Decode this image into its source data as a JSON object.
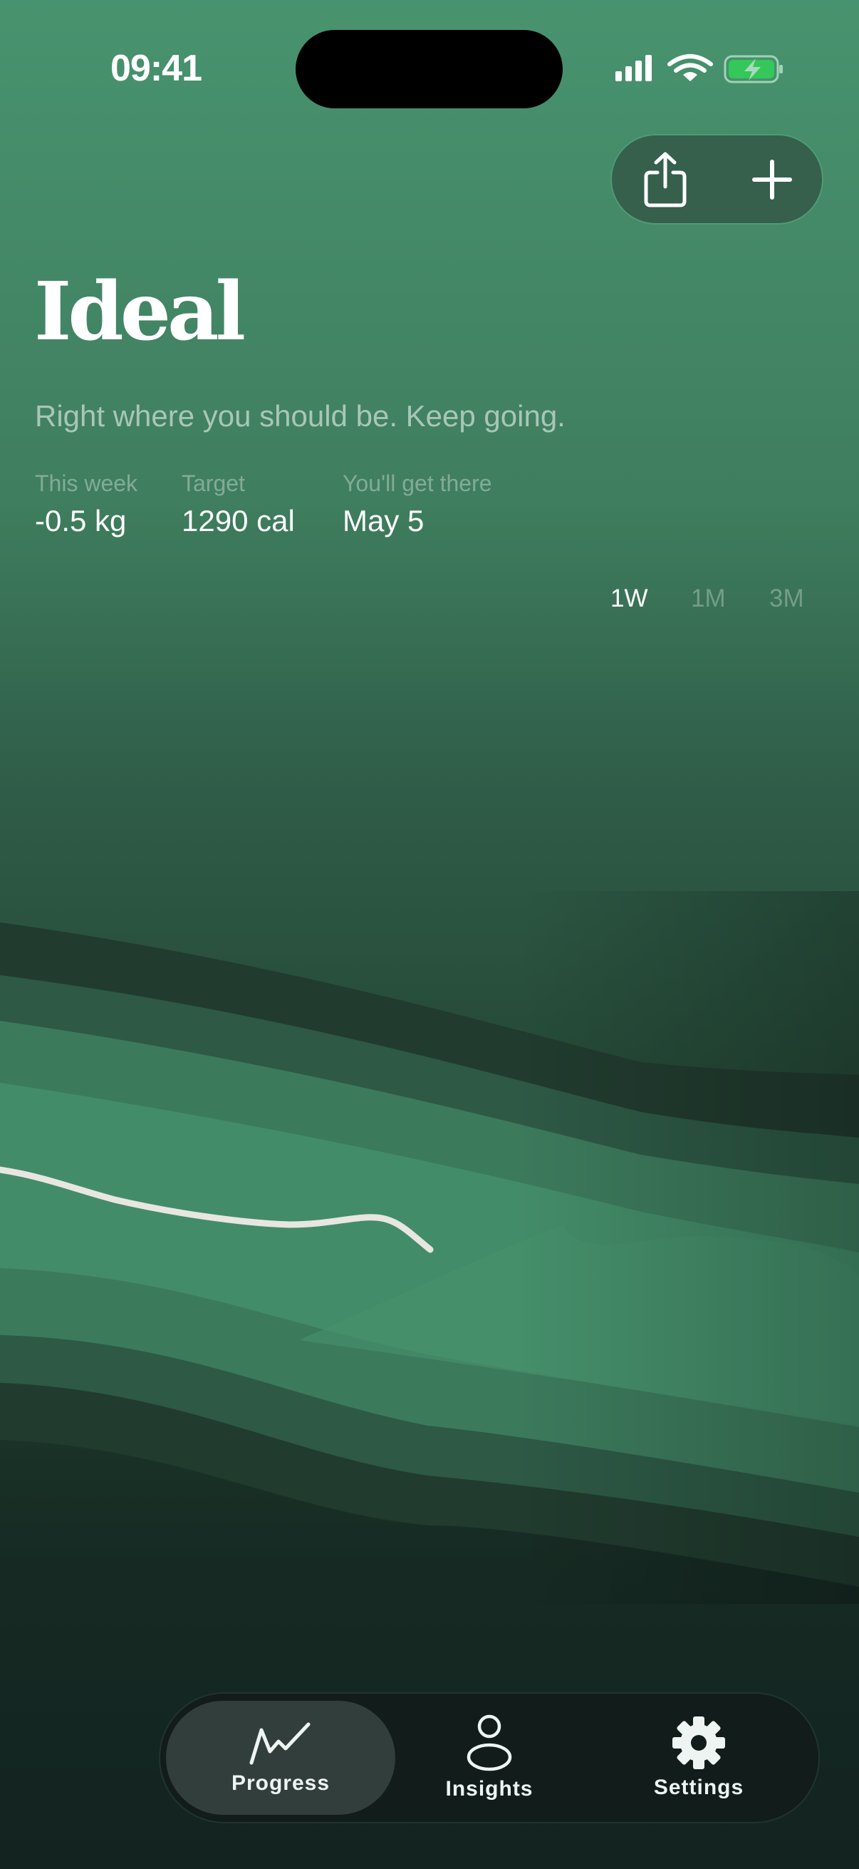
{
  "status_bar": {
    "time": "09:41",
    "signal_icon": "cellular-signal-icon",
    "wifi_icon": "wifi-icon",
    "battery_icon": "battery-charging-icon",
    "battery_color": "#34c759"
  },
  "actions": {
    "share_icon": "share-icon",
    "add_icon": "plus-icon"
  },
  "header": {
    "title": "Ideal",
    "subtitle": "Right where you should be. Keep going."
  },
  "stats": [
    {
      "label": "This week",
      "value": "-0.5 kg"
    },
    {
      "label": "Target",
      "value": "1290 cal"
    },
    {
      "label": "You'll get there",
      "value": "May 5"
    }
  ],
  "ranges": [
    {
      "label": "1W",
      "active": true
    },
    {
      "label": "1M",
      "active": false
    },
    {
      "label": "3M",
      "active": false
    }
  ],
  "colors": {
    "accent": "#48936f",
    "trend_line": "#e8e6e1"
  },
  "nav": {
    "items": [
      {
        "label": "Progress",
        "icon": "progress-chart-icon",
        "active": true
      },
      {
        "label": "Insights",
        "icon": "person-icon",
        "active": false
      },
      {
        "label": "Settings",
        "icon": "gear-icon",
        "active": false
      }
    ]
  }
}
